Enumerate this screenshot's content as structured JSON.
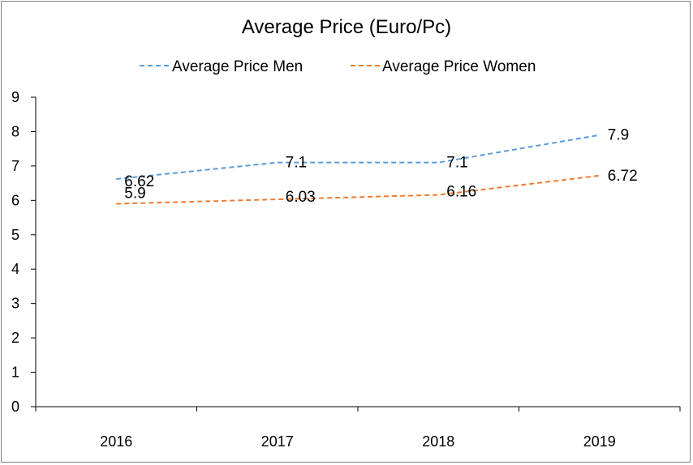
{
  "chart_data": {
    "type": "line",
    "title": "Average Price (Euro/Pc)",
    "categories": [
      "2016",
      "2017",
      "2018",
      "2019"
    ],
    "series": [
      {
        "name": "Average Price Men",
        "values": [
          6.62,
          7.1,
          7.1,
          7.9
        ],
        "color": "#5b9bd5",
        "labels": [
          "6.62",
          "7.1",
          "7.1",
          "7.9"
        ]
      },
      {
        "name": "Average Price Women",
        "values": [
          5.9,
          6.03,
          6.16,
          6.72
        ],
        "color": "#ed7d31",
        "labels": [
          "5.9",
          "6.03",
          "6.16",
          "6.72"
        ]
      }
    ],
    "ylim": [
      0,
      9
    ],
    "yticks": [
      "0",
      "1",
      "2",
      "3",
      "4",
      "5",
      "6",
      "7",
      "8",
      "9"
    ],
    "grid": false,
    "legend_position": "top",
    "line_style": "dashed"
  }
}
